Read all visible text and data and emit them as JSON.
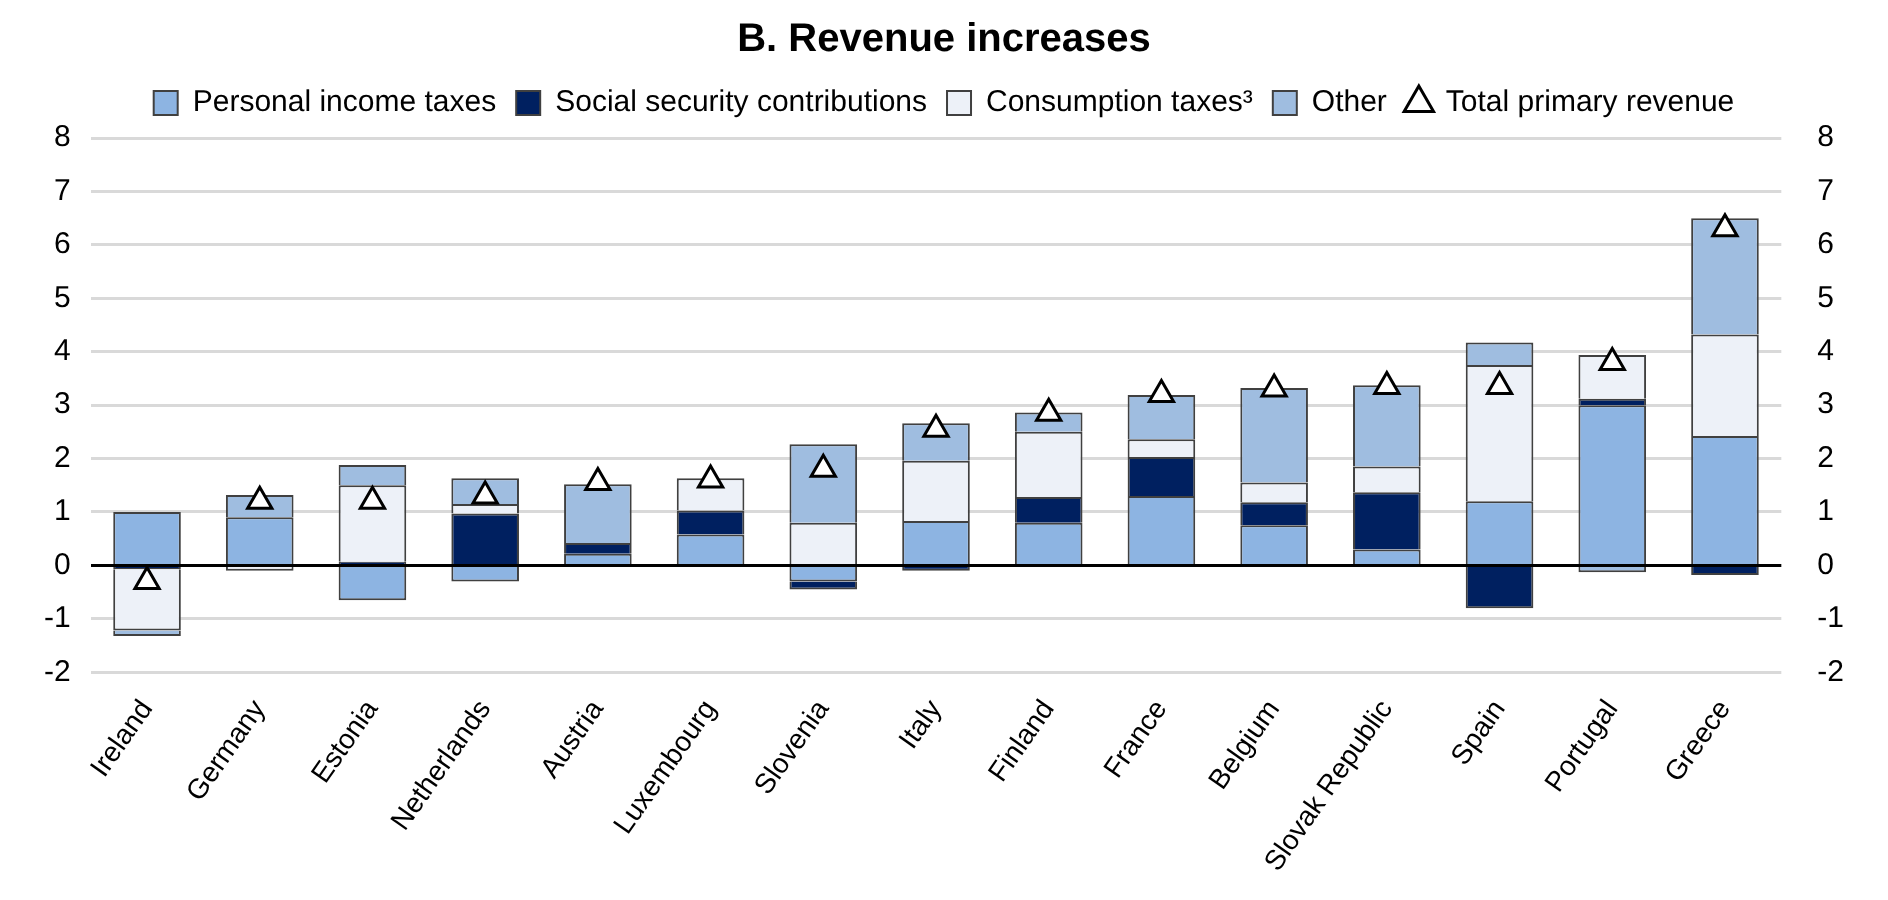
{
  "chart_data": {
    "type": "bar",
    "title": "B. Revenue increases",
    "stacked": true,
    "categories": [
      "Ireland",
      "Germany",
      "Estonia",
      "Netherlands",
      "Austria",
      "Luxembourg",
      "Slovenia",
      "Italy",
      "Finland",
      "France",
      "Belgium",
      "Slovak Republic",
      "Spain",
      "Portugal",
      "Greece"
    ],
    "series": [
      {
        "name": "Personal income taxes",
        "color": "#8db4e2",
        "values": [
          1.0,
          0.9,
          -0.65,
          -0.3,
          0.22,
          0.58,
          -0.3,
          0.83,
          0.8,
          1.3,
          0.75,
          0.3,
          1.2,
          3.0,
          2.42
        ]
      },
      {
        "name": "Social security contributions",
        "color": "#002060",
        "values": [
          -0.07,
          0,
          0.07,
          0.97,
          0.2,
          0.45,
          -0.15,
          -0.1,
          0.48,
          0.73,
          0.43,
          1.07,
          -0.8,
          0.12,
          -0.18
        ]
      },
      {
        "name": "Consumption taxes³",
        "color": "#edf1f8",
        "values": [
          -1.15,
          -0.1,
          1.43,
          0.18,
          0,
          0.6,
          0.8,
          1.13,
          1.22,
          0.33,
          0.37,
          0.48,
          2.55,
          0.82,
          1.9
        ]
      },
      {
        "name": "Other",
        "color": "#9fbde0",
        "values": [
          -0.1,
          0.42,
          0.38,
          0.48,
          1.1,
          0,
          1.47,
          0.7,
          0.36,
          0.83,
          1.77,
          1.52,
          0.42,
          -0.13,
          2.18
        ]
      },
      {
        "name": "Total primary revenue",
        "type": "scatter",
        "color": "#ffffff",
        "marker": "triangle",
        "x": [
          "Ireland",
          "Germany",
          "Estonia",
          "Netherlands",
          "Austria",
          "Luxembourg",
          "Slovenia",
          "Italy",
          "Finland",
          "France",
          "Belgium",
          "Slovak Republic",
          "Spain",
          "Portugal",
          "Greece"
        ],
        "values": [
          -0.3,
          1.2,
          1.2,
          1.3,
          1.55,
          1.6,
          1.8,
          2.55,
          2.85,
          3.2,
          3.3,
          3.35,
          3.35,
          3.8,
          6.3
        ]
      }
    ],
    "ylim": [
      -2,
      8
    ],
    "yticks": [
      -2,
      -1,
      0,
      1,
      2,
      3,
      4,
      5,
      6,
      7,
      8
    ],
    "y2lim": [
      -2,
      8
    ],
    "y2ticks": [
      -2,
      -1,
      0,
      1,
      2,
      3,
      4,
      5,
      6,
      7,
      8
    ],
    "grid": "y",
    "legend": "top"
  }
}
